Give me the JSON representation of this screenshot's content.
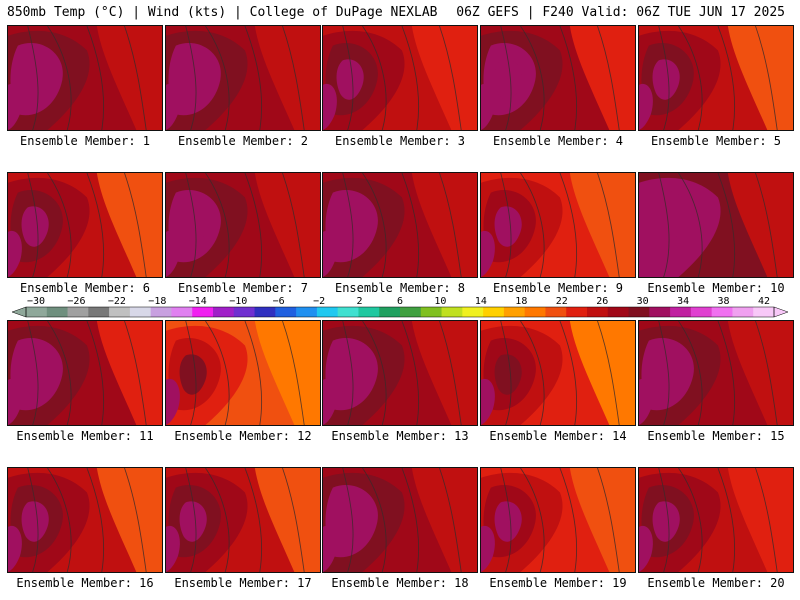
{
  "header": {
    "left": "850mb Temp (°C) | Wind (kts) | College of DuPage NEXLAB",
    "right": "06Z GEFS | F240 Valid: 06Z TUE JUN 17 2025"
  },
  "members": [
    {
      "label": "Ensemble Member: 1",
      "level": 0.82
    },
    {
      "label": "Ensemble Member: 2",
      "level": 0.8
    },
    {
      "label": "Ensemble Member: 3",
      "level": 0.74
    },
    {
      "label": "Ensemble Member: 4",
      "level": 0.78
    },
    {
      "label": "Ensemble Member: 5",
      "level": 0.66
    },
    {
      "label": "Ensemble Member: 6",
      "level": 0.66
    },
    {
      "label": "Ensemble Member: 7",
      "level": 0.84
    },
    {
      "label": "Ensemble Member: 8",
      "level": 0.8
    },
    {
      "label": "Ensemble Member: 9",
      "level": 0.62
    },
    {
      "label": "Ensemble Member: 10",
      "level": 0.86
    },
    {
      "label": "Ensemble Member: 11",
      "level": 0.76
    },
    {
      "label": "Ensemble Member: 12",
      "level": 0.52
    },
    {
      "label": "Ensemble Member: 13",
      "level": 0.8
    },
    {
      "label": "Ensemble Member: 14",
      "level": 0.6
    },
    {
      "label": "Ensemble Member: 15",
      "level": 0.84
    },
    {
      "label": "Ensemble Member: 16",
      "level": 0.7
    },
    {
      "label": "Ensemble Member: 17",
      "level": 0.66
    },
    {
      "label": "Ensemble Member: 18",
      "level": 0.8
    },
    {
      "label": "Ensemble Member: 19",
      "level": 0.62
    },
    {
      "label": "Ensemble Member: 20",
      "level": 0.72
    }
  ],
  "colorbar": {
    "ticks": [
      "−30",
      "−26",
      "−22",
      "−18",
      "−14",
      "−10",
      "−6",
      "−2",
      "2",
      "6",
      "10",
      "14",
      "18",
      "22",
      "26",
      "30",
      "34",
      "38",
      "42"
    ],
    "colors": [
      "#8fa89a",
      "#6f8f7e",
      "#a0a0a0",
      "#787878",
      "#c0c0c0",
      "#d8d8e8",
      "#c8a0e0",
      "#e080f0",
      "#f020f0",
      "#a020c8",
      "#7030d0",
      "#3030c0",
      "#2060e0",
      "#2090f0",
      "#20c8f0",
      "#40e0d0",
      "#20c8a0",
      "#20a060",
      "#40a040",
      "#80c020",
      "#c0e020",
      "#f0f020",
      "#ffd000",
      "#ffa000",
      "#ff7800",
      "#f05010",
      "#e02010",
      "#c01010",
      "#a00818",
      "#801020",
      "#a01060",
      "#c020a0",
      "#e040d0",
      "#f070f0",
      "#f0a0f0",
      "#f8c8f8"
    ]
  }
}
